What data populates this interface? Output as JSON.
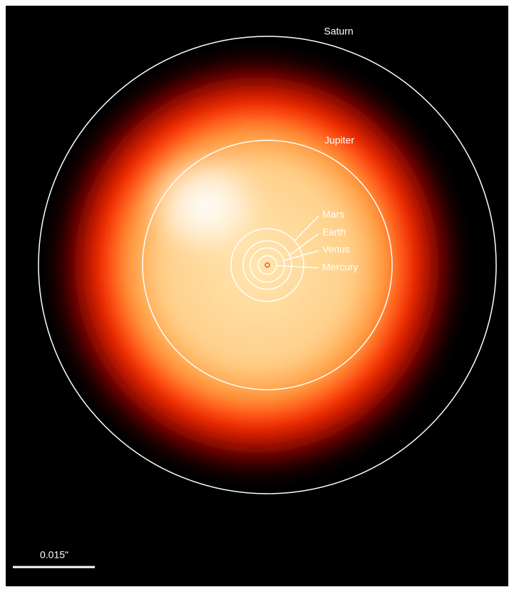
{
  "labels": {
    "saturn": "Saturn",
    "jupiter": "Jupiter",
    "mars": "Mars",
    "earth": "Earth",
    "venus": "Venus",
    "mercury": "Mercury"
  },
  "scale_bar": "0.015\""
}
